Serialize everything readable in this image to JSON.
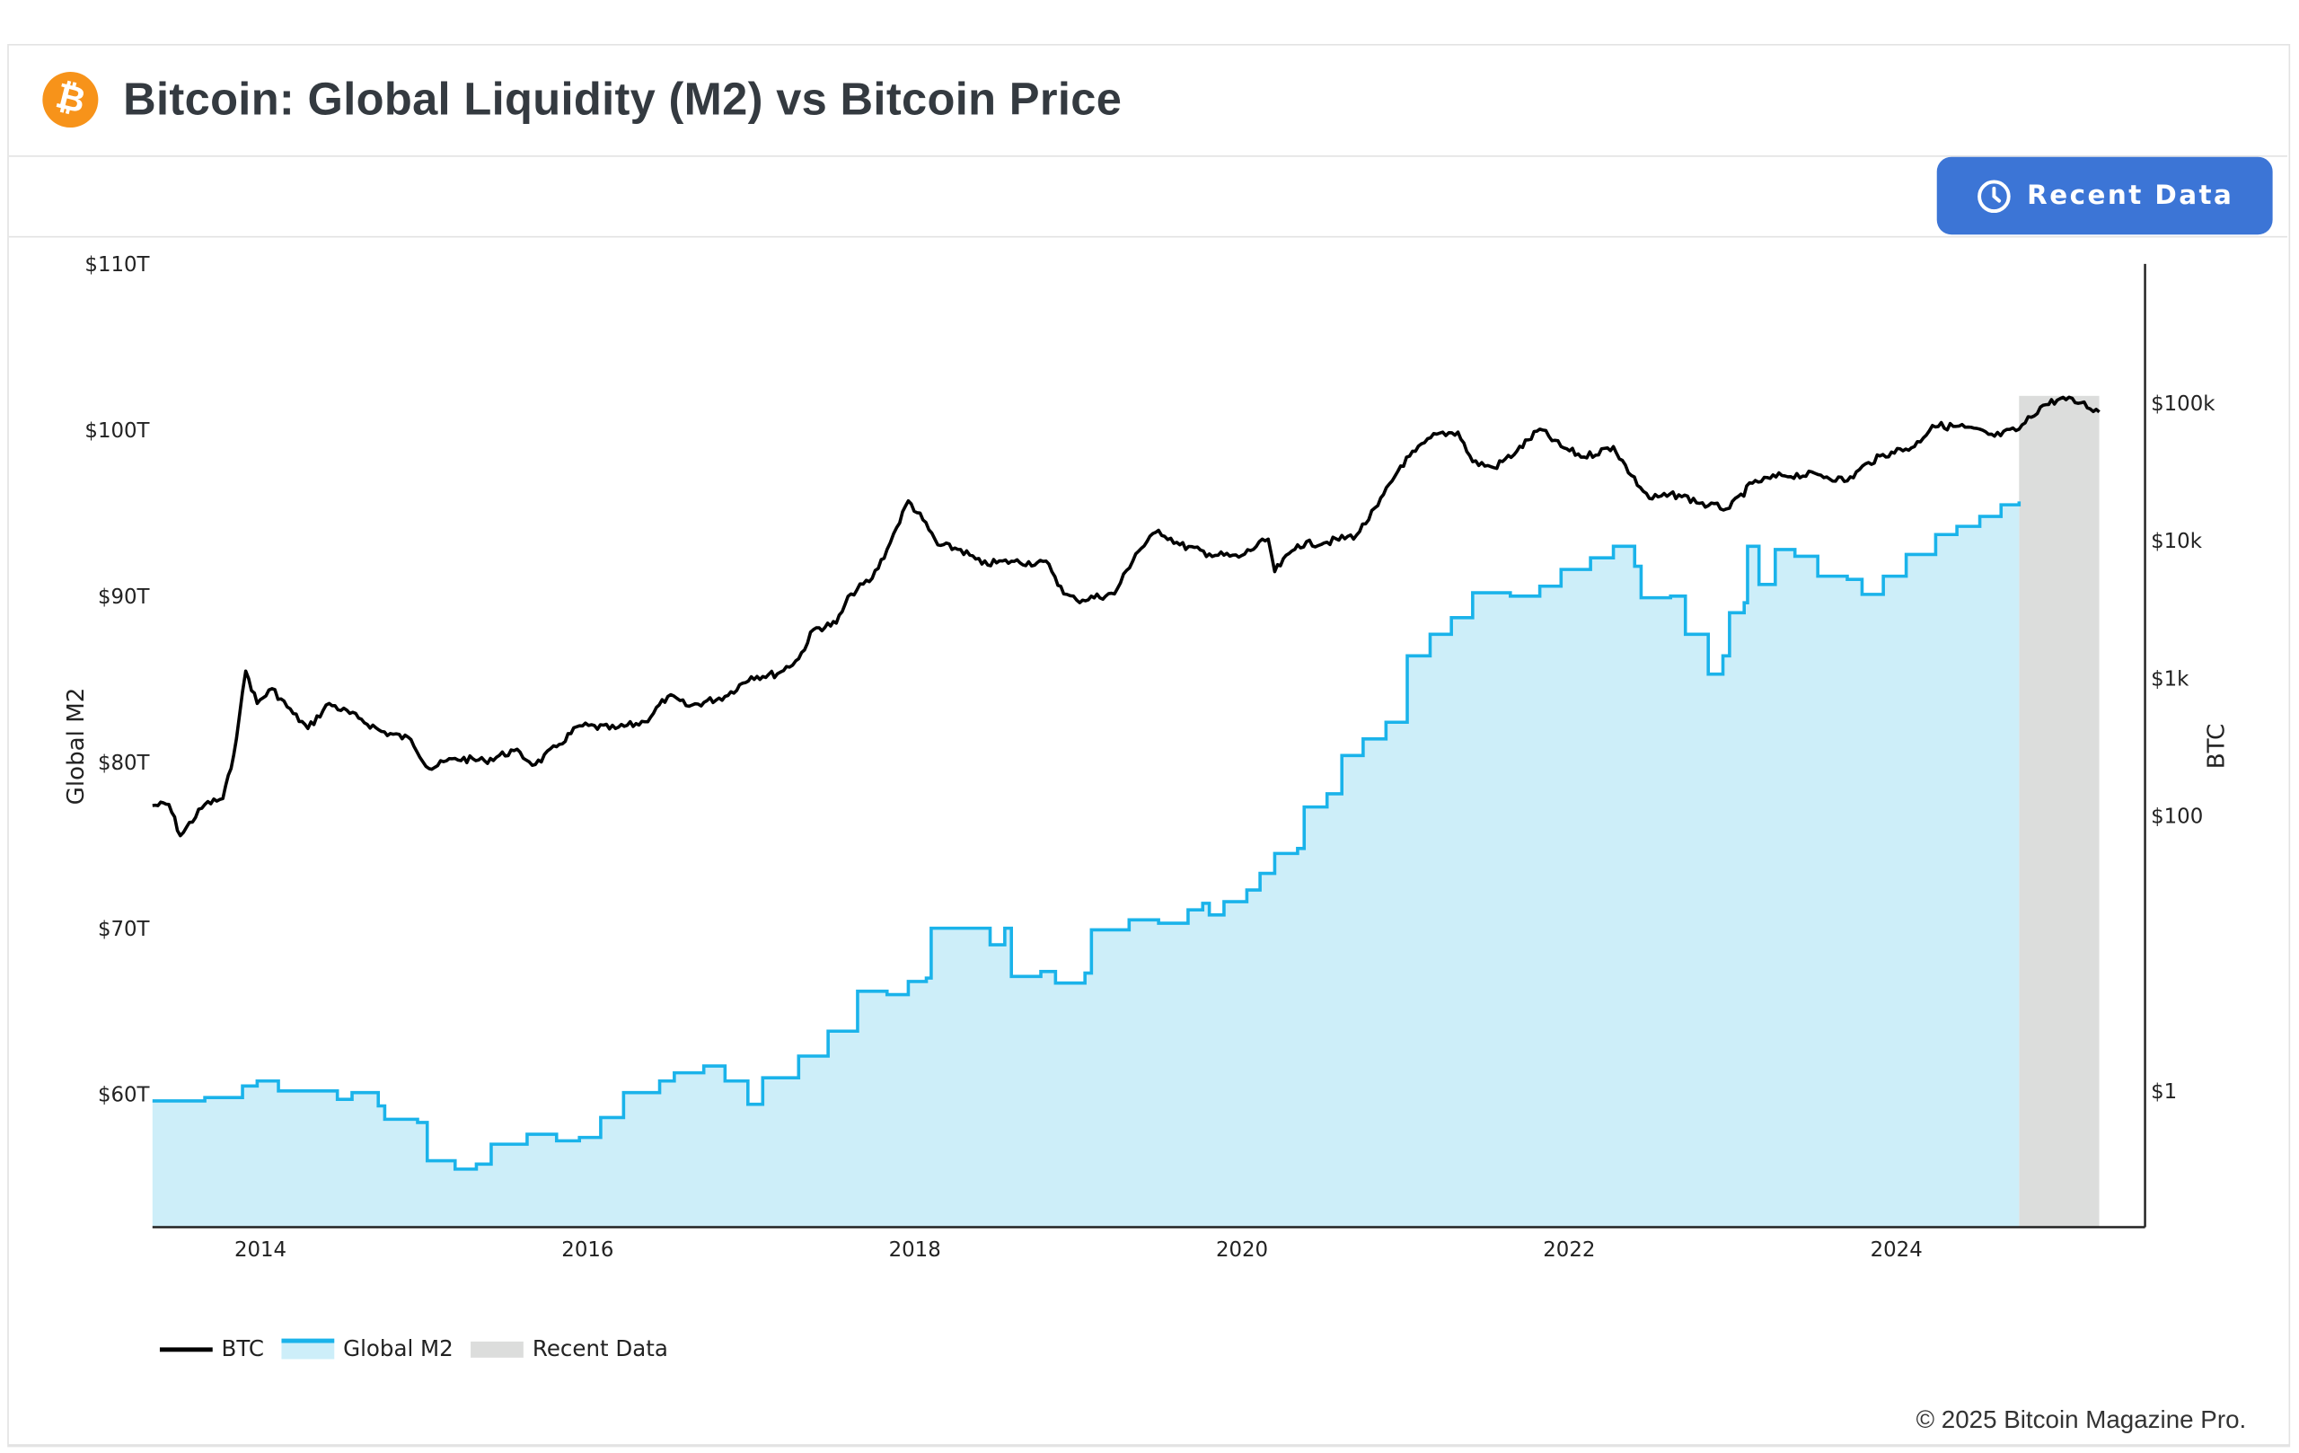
{
  "header": {
    "title": "Bitcoin: Global Liquidity (M2) vs Bitcoin Price",
    "logo_icon": "bitcoin-logo",
    "logo_glyph": "₿"
  },
  "toolbar": {
    "recent_data_label": "Recent Data",
    "recent_data_icon": "clock-icon",
    "button_color": "#3c75d6"
  },
  "footer": {
    "copyright": "© 2025 Bitcoin Magazine Pro."
  },
  "chart_data": {
    "type": "line",
    "title": "Bitcoin: Global Liquidity (M2) vs Bitcoin Price",
    "xlabel": "",
    "ylabel_left": "Global M2",
    "ylabel_right": "BTC",
    "xlim": [
      2013.34,
      2025.52
    ],
    "ylim_left": [
      52,
      110
    ],
    "ylim_right": [
      0.1,
      1000000
    ],
    "right_scale": "log",
    "x_ticks": [
      "2014",
      "2016",
      "2018",
      "2020",
      "2022",
      "2024"
    ],
    "x_tick_values": [
      2014,
      2016,
      2018,
      2020,
      2022,
      2024
    ],
    "left_ticks": [
      "$60T",
      "$70T",
      "$80T",
      "$90T",
      "$100T",
      "$110T"
    ],
    "left_tick_values": [
      60,
      70,
      80,
      90,
      100,
      110
    ],
    "right_ticks": [
      "$1",
      "$100",
      "$1k",
      "$10k",
      "$100k"
    ],
    "right_tick_values": [
      1,
      100,
      1000,
      10000,
      100000
    ],
    "grid": false,
    "legend_position": "bottom-left",
    "legend": [
      "BTC",
      "Global M2",
      "Recent Data"
    ],
    "recent_data_range": [
      2024.75,
      2025.24
    ],
    "colors": {
      "btc": "#000000",
      "m2_line": "#1ab3ea",
      "m2_fill": "#cdeef9",
      "recent": "#dcdddc"
    },
    "series": [
      {
        "name": "Global M2",
        "axis": "left",
        "unit": "T USD",
        "x": [
          2013.34,
          2013.66,
          2013.89,
          2013.98,
          2014.11,
          2014.47,
          2014.56,
          2014.72,
          2014.76,
          2014.96,
          2015.02,
          2015.19,
          2015.32,
          2015.41,
          2015.63,
          2015.81,
          2015.95,
          2016.08,
          2016.22,
          2016.44,
          2016.53,
          2016.71,
          2016.84,
          2016.98,
          2017.07,
          2017.29,
          2017.47,
          2017.65,
          2017.83,
          2017.96,
          2018.07,
          2018.1,
          2018.32,
          2018.46,
          2018.55,
          2018.59,
          2018.77,
          2018.86,
          2019.04,
          2019.08,
          2019.31,
          2019.49,
          2019.67,
          2019.76,
          2019.8,
          2019.89,
          2020.03,
          2020.11,
          2020.2,
          2020.34,
          2020.38,
          2020.52,
          2020.61,
          2020.74,
          2020.88,
          2021.01,
          2021.15,
          2021.28,
          2021.41,
          2021.64,
          2021.82,
          2021.95,
          2022.13,
          2022.27,
          2022.4,
          2022.44,
          2022.62,
          2022.71,
          2022.85,
          2022.94,
          2022.98,
          2023.07,
          2023.09,
          2023.16,
          2023.26,
          2023.38,
          2023.52,
          2023.7,
          2023.79,
          2023.92,
          2024.06,
          2024.24,
          2024.37,
          2024.51,
          2024.64,
          2024.75
        ],
        "values": [
          59.6,
          59.8,
          60.5,
          60.8,
          60.2,
          59.7,
          60.1,
          59.3,
          58.5,
          58.3,
          56.0,
          55.5,
          55.8,
          57.0,
          57.6,
          57.2,
          57.4,
          58.6,
          60.1,
          60.8,
          61.3,
          61.7,
          60.8,
          59.4,
          61.0,
          62.3,
          63.8,
          66.2,
          66.0,
          66.8,
          67.0,
          70.0,
          70.0,
          69.0,
          70.0,
          67.1,
          67.4,
          66.7,
          67.3,
          69.9,
          70.5,
          70.3,
          71.1,
          71.5,
          70.8,
          71.6,
          72.3,
          73.3,
          74.5,
          74.8,
          77.3,
          78.1,
          80.4,
          81.4,
          82.4,
          86.4,
          87.7,
          88.7,
          90.2,
          90.0,
          90.6,
          91.6,
          92.3,
          93.0,
          91.8,
          89.9,
          90.0,
          87.7,
          85.3,
          86.4,
          89.0,
          89.6,
          93.0,
          90.7,
          92.8,
          92.4,
          91.2,
          91.0,
          90.1,
          91.2,
          92.5,
          93.7,
          94.2,
          94.8,
          95.5,
          95.7
        ]
      },
      {
        "name": "BTC",
        "axis": "right",
        "unit": "USD",
        "x": [
          2013.34,
          2013.44,
          2013.51,
          2013.66,
          2013.77,
          2013.82,
          2013.87,
          2013.91,
          2013.98,
          2014.07,
          2014.2,
          2014.29,
          2014.42,
          2014.6,
          2014.74,
          2014.92,
          2015.03,
          2015.19,
          2015.37,
          2015.55,
          2015.68,
          2015.81,
          2015.95,
          2016.17,
          2016.35,
          2016.49,
          2016.62,
          2016.84,
          2017.0,
          2017.16,
          2017.29,
          2017.38,
          2017.52,
          2017.61,
          2017.74,
          2017.83,
          2017.89,
          2017.96,
          2018.05,
          2018.14,
          2018.28,
          2018.41,
          2018.59,
          2018.82,
          2018.91,
          2018.99,
          2019.22,
          2019.35,
          2019.49,
          2019.62,
          2019.8,
          2019.98,
          2020.16,
          2020.2,
          2020.34,
          2020.52,
          2020.7,
          2020.83,
          2020.97,
          2021.06,
          2021.19,
          2021.32,
          2021.41,
          2021.54,
          2021.68,
          2021.82,
          2021.95,
          2022.09,
          2022.27,
          2022.38,
          2022.49,
          2022.67,
          2022.85,
          2022.98,
          2023.12,
          2023.3,
          2023.52,
          2023.7,
          2023.83,
          2023.97,
          2024.11,
          2024.22,
          2024.42,
          2024.6,
          2024.75,
          2024.88,
          2025.0,
          2025.13,
          2025.24
        ],
        "values": [
          116,
          118,
          70,
          118,
          130,
          215,
          500,
          1100,
          640,
          820,
          540,
          420,
          640,
          500,
          400,
          350,
          215,
          255,
          245,
          290,
          230,
          310,
          440,
          420,
          470,
          720,
          610,
          720,
          1000,
          1050,
          1350,
          2200,
          2450,
          4000,
          5200,
          8400,
          12200,
          19000,
          13800,
          9100,
          8400,
          6600,
          6900,
          6600,
          4000,
          3600,
          4000,
          7800,
          11600,
          9100,
          7800,
          7400,
          10000,
          5800,
          9100,
          9500,
          10700,
          17500,
          34000,
          43500,
          58000,
          60000,
          36500,
          33000,
          43500,
          63000,
          47000,
          39500,
          47000,
          29000,
          19800,
          21000,
          17500,
          16800,
          25500,
          29000,
          29500,
          26500,
          36000,
          43000,
          47000,
          67000,
          65000,
          56000,
          63000,
          91000,
          105000,
          98000,
          84000
        ]
      }
    ]
  }
}
